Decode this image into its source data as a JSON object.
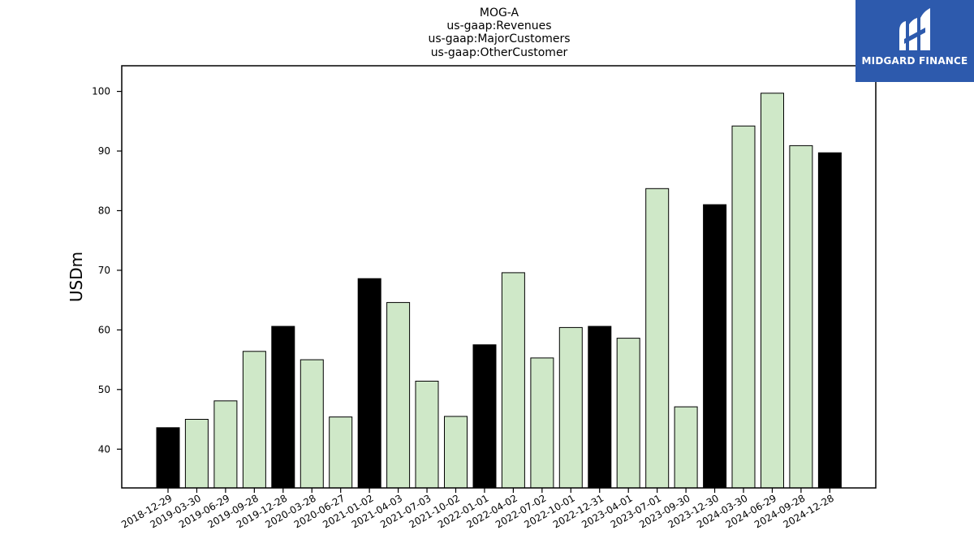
{
  "chart_data": {
    "type": "bar",
    "title_lines": [
      "MOG-A",
      "us-gaap:Revenues",
      "us-gaap:MajorCustomers",
      "us-gaap:OtherCustomer"
    ],
    "ylabel": "USDm",
    "xlabel": "",
    "ylim": [
      33.5,
      104.3
    ],
    "yticks": [
      40,
      50,
      60,
      70,
      80,
      90,
      100
    ],
    "categories": [
      "2018-12-29",
      "2019-03-30",
      "2019-06-29",
      "2019-09-28",
      "2019-12-28",
      "2020-03-28",
      "2020-06-27",
      "2021-01-02",
      "2021-04-03",
      "2021-07-03",
      "2021-10-02",
      "2022-01-01",
      "2022-04-02",
      "2022-07-02",
      "2022-10-01",
      "2022-12-31",
      "2023-04-01",
      "2023-07-01",
      "2023-09-30",
      "2023-12-30",
      "2024-03-30",
      "2024-06-29",
      "2024-09-28",
      "2024-12-28"
    ],
    "values": [
      43.6,
      45.0,
      48.1,
      56.4,
      60.6,
      55.0,
      45.4,
      68.6,
      64.6,
      51.4,
      45.5,
      57.5,
      69.6,
      55.3,
      60.4,
      60.6,
      58.6,
      83.7,
      47.1,
      81.0,
      94.2,
      99.7,
      90.9,
      89.7
    ],
    "fiscal_year_end": [
      true,
      false,
      false,
      false,
      true,
      false,
      false,
      true,
      false,
      false,
      false,
      true,
      false,
      false,
      false,
      true,
      false,
      false,
      false,
      true,
      false,
      false,
      false,
      true
    ],
    "colors": {
      "year_end": "#000000",
      "quarter": "#cfe8c8",
      "edge": "#000000"
    }
  },
  "logo": {
    "text": "MIDGARD FINANCE",
    "background": "#2d5aad"
  }
}
